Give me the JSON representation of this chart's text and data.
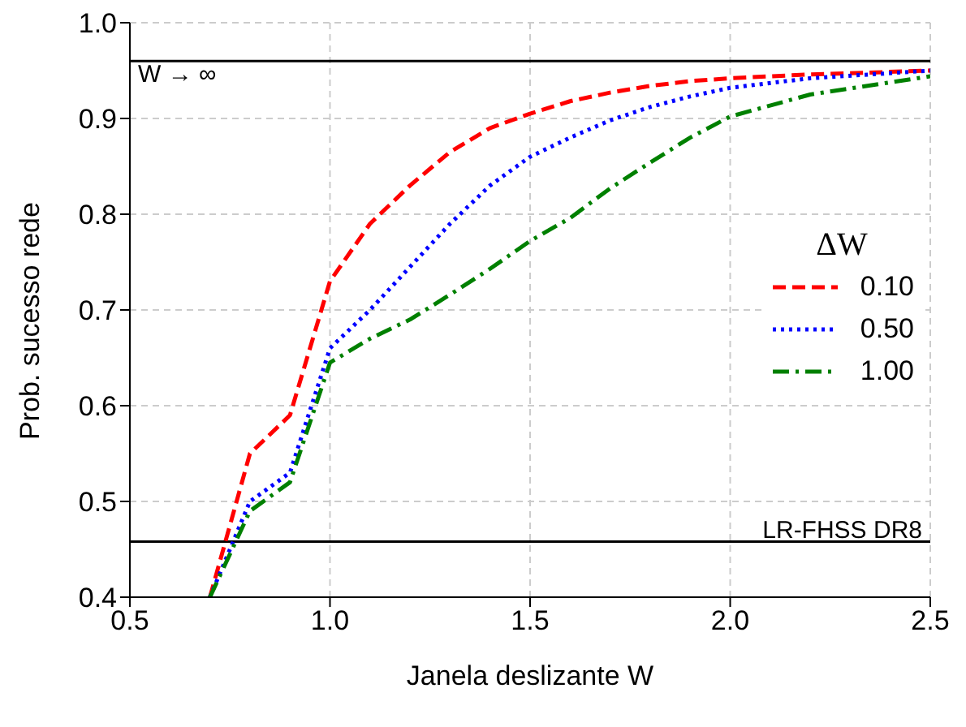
{
  "chart_data": {
    "type": "line",
    "xlabel": "Janela deslizante W",
    "ylabel": "Prob. sucesso rede",
    "legend_title": "ΔW",
    "xlim": [
      0.5,
      2.5
    ],
    "xticks": [
      {
        "value": 0.5,
        "label": "0.5"
      },
      {
        "value": 1.0,
        "label": "1.0"
      },
      {
        "value": 1.5,
        "label": "1.5"
      },
      {
        "value": 2.0,
        "label": "2.0"
      },
      {
        "value": 2.5,
        "label": "2.5"
      }
    ],
    "ylim": [
      0.4,
      1.0
    ],
    "yticks": [
      0.4,
      0.5,
      0.6,
      0.7,
      0.8,
      0.9,
      {
        "value": 1.0,
        "label": "1.0"
      }
    ],
    "grid": true,
    "legend": "right",
    "marker": "none",
    "series": [
      {
        "name": "0.10",
        "color": "#ff0000",
        "line_style": "dashed",
        "x": [
          0.7,
          0.8,
          0.9,
          1.0,
          1.1,
          1.2,
          1.3,
          1.4,
          1.5,
          1.6,
          1.7,
          1.8,
          1.9,
          2.0,
          2.2,
          2.5
        ],
        "values": [
          0.4,
          0.55,
          0.59,
          0.73,
          0.79,
          0.83,
          0.865,
          0.89,
          0.905,
          0.918,
          0.927,
          0.934,
          0.939,
          0.942,
          0.946,
          0.95
        ]
      },
      {
        "name": "0.50",
        "color": "#0000ff",
        "line_style": "dotted",
        "x": [
          0.7,
          0.8,
          0.9,
          1.0,
          1.1,
          1.2,
          1.3,
          1.4,
          1.5,
          1.6,
          1.7,
          1.8,
          1.9,
          2.0,
          2.2,
          2.5
        ],
        "values": [
          0.4,
          0.5,
          0.53,
          0.66,
          0.7,
          0.745,
          0.79,
          0.83,
          0.86,
          0.88,
          0.898,
          0.912,
          0.923,
          0.932,
          0.942,
          0.95
        ]
      },
      {
        "name": "1.00",
        "color": "#008000",
        "line_style": "dashdot",
        "x": [
          0.7,
          0.8,
          0.9,
          1.0,
          1.1,
          1.2,
          1.3,
          1.4,
          1.5,
          1.6,
          1.7,
          1.8,
          1.9,
          2.0,
          2.2,
          2.5
        ],
        "values": [
          0.4,
          0.49,
          0.52,
          0.645,
          0.67,
          0.69,
          0.716,
          0.743,
          0.772,
          0.796,
          0.827,
          0.854,
          0.88,
          0.902,
          0.925,
          0.944
        ]
      }
    ],
    "ref_lines": [
      {
        "axis": "y",
        "value": 0.96,
        "label": "W → ∞",
        "color": "#000000"
      },
      {
        "axis": "y",
        "value": 0.458,
        "label": "LR-FHSS DR8",
        "color": "#000000"
      }
    ]
  }
}
